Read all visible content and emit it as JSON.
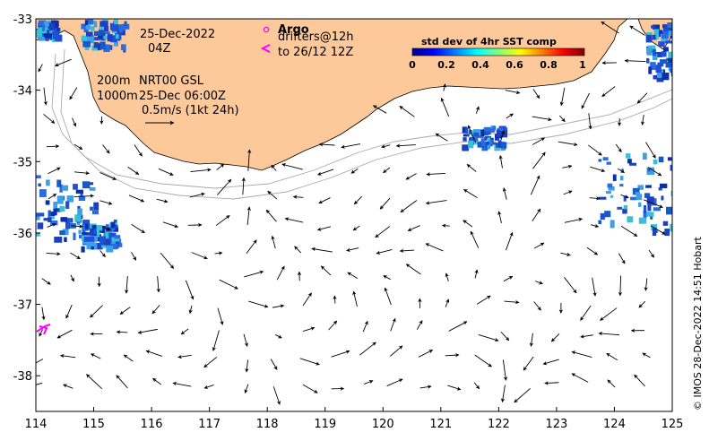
{
  "map": {
    "date_line": "25-Dec-2022",
    "time_line": "04Z",
    "depth_line1": "200m",
    "depth_line2": "1000m",
    "product_line1": "NRT00 GSL",
    "product_line2": "25-Dec 06:00Z",
    "scale_label": "0.5m/s (1kt 24h)",
    "argo_label": "Argo",
    "drifters_line1": "drifters@12h",
    "drifters_line2": "to 26/12 12Z",
    "credit": "© IMOS 28-Dec-2022 14:51 Hobart",
    "land_color": "#fdc99a",
    "argo_color": "#ff00ff",
    "drifter_color": "#ff00ff"
  },
  "axes": {
    "x_ticks": [
      "114",
      "115",
      "116",
      "117",
      "118",
      "119",
      "120",
      "121",
      "122",
      "123",
      "124",
      "125"
    ],
    "y_ticks": [
      "-33",
      "-34",
      "-35",
      "-36",
      "-37",
      "-38"
    ],
    "x_range": [
      114,
      125
    ],
    "y_range": [
      -38.5,
      -33
    ]
  },
  "colorbar": {
    "title": "std dev of 4hr SST comp",
    "ticks": [
      "0",
      "0.2",
      "0.4",
      "0.6",
      "0.8",
      "1"
    ]
  },
  "chart_data": {
    "type": "map",
    "argo_floats": [
      {
        "lon": 118.0,
        "lat": -33.2
      }
    ],
    "drifter_tracks": [
      {
        "lon": [
          114.1,
          114.25,
          114.35
        ],
        "lat": [
          -37.55,
          -37.35,
          -37.25
        ]
      }
    ]
  }
}
